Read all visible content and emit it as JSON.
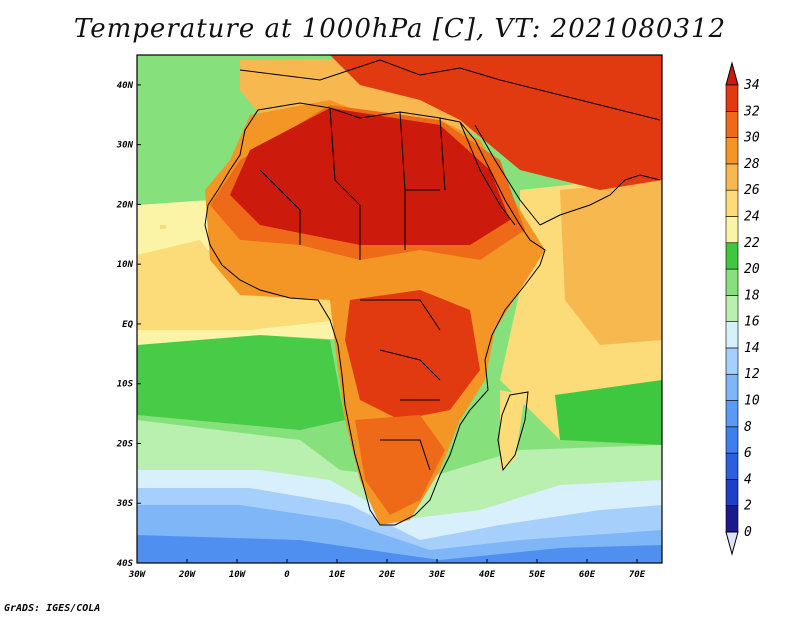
{
  "title": "Temperature at 1000hPa [C], VT: 2021080312",
  "credit": "GrADS: IGES/COLA",
  "map": {
    "lon_range": [
      -30,
      75
    ],
    "lat_range": [
      -40,
      45
    ],
    "lat_labels": [
      "40N",
      "30N",
      "20N",
      "10N",
      "EQ",
      "10S",
      "20S",
      "30S",
      "40S"
    ],
    "lat_values": [
      40,
      30,
      20,
      10,
      0,
      -10,
      -20,
      -30,
      -40
    ],
    "lon_labels": [
      "30W",
      "20W",
      "10W",
      "0",
      "10E",
      "20E",
      "30E",
      "40E",
      "50E",
      "60E",
      "70E"
    ],
    "lon_values": [
      -30,
      -20,
      -10,
      0,
      10,
      20,
      30,
      40,
      50,
      60,
      70
    ]
  },
  "colorbar": {
    "labels": [
      "0",
      "2",
      "4",
      "6",
      "8",
      "10",
      "12",
      "14",
      "16",
      "18",
      "20",
      "22",
      "24",
      "26",
      "28",
      "30",
      "32",
      "34"
    ],
    "colors": [
      "#1a1a8c",
      "#1f3fc8",
      "#2a5fe0",
      "#3d7fee",
      "#5a9af4",
      "#7eb6f8",
      "#a6d0fb",
      "#d8f0fc",
      "#b9f0b0",
      "#86e07c",
      "#3dc840",
      "#fbf4a6",
      "#fbdc78",
      "#f8b850",
      "#f49626",
      "#ee6a18",
      "#e23a10",
      "#cc1a0c"
    ]
  },
  "field_colors": {
    "ocean_south_deep": "#4f8ff0",
    "ocean_south": "#7eb6f8",
    "ocean_mid_light": "#a6d0fb",
    "ocean_pale": "#d8f0fc",
    "green_light": "#b9f0b0",
    "green_mid": "#86e07c",
    "green": "#3dc840",
    "yellow_pale": "#fbf4a6",
    "yellow": "#fbdc78",
    "orange_light": "#f8b850",
    "orange": "#f49626",
    "orange_red": "#ee6a18",
    "red": "#e23a10",
    "dark_red": "#cc1a0c"
  }
}
